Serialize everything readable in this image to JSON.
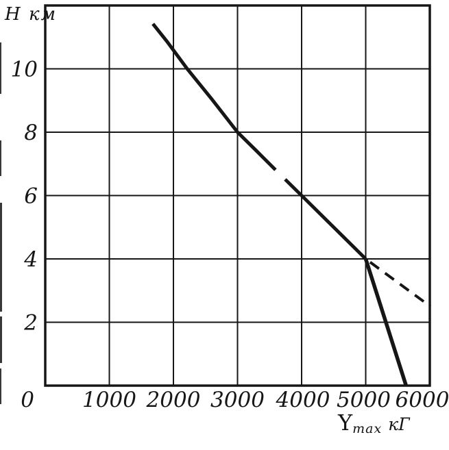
{
  "figure": {
    "background": "#ffffff",
    "ink_color": "#161616",
    "y_axis_title": "Н км",
    "x_axis_title": {
      "main": "Y",
      "sub": "max",
      "unit": "кГ"
    }
  },
  "chart_data": {
    "type": "line",
    "title": "",
    "xlabel": "Ymax кГ",
    "ylabel": "Н км",
    "xlim": [
      0,
      6000
    ],
    "ylim": [
      0,
      12
    ],
    "grid": true,
    "legend": "none",
    "x_ticks": [
      1000,
      2000,
      3000,
      4000,
      5000,
      6000
    ],
    "x_tick_labels": [
      "1000",
      "2000",
      "3000",
      "4000",
      "5000",
      "6000"
    ],
    "x_tick_label_dx": [
      0,
      0,
      0,
      2,
      -3,
      -11
    ],
    "y_ticks": [
      2,
      4,
      6,
      8,
      10
    ],
    "y_tick_labels": [
      "2",
      "4",
      "6",
      "8",
      "10"
    ],
    "origin_label": "0",
    "series": [
      {
        "name": "ceiling-curve-upper-solid",
        "style": "solid",
        "width": 5,
        "points": [
          [
            1680,
            11.42
          ],
          [
            1900,
            10.86
          ],
          [
            2215,
            10
          ],
          [
            2600,
            9.04
          ],
          [
            3000,
            8
          ],
          [
            3300,
            7.4
          ],
          [
            3593,
            6.81
          ]
        ]
      },
      {
        "name": "ceiling-curve-lower-solid",
        "style": "solid",
        "width": 5,
        "points": [
          [
            3743,
            6.51
          ],
          [
            4000,
            6
          ],
          [
            5000,
            4
          ]
        ]
      },
      {
        "name": "steep-descent-branch-solid",
        "style": "solid",
        "width": 5.5,
        "points": [
          [
            5000,
            4
          ],
          [
            5630,
            0
          ]
        ]
      },
      {
        "name": "extrapolation-branch-dashed",
        "style": "dashed",
        "width": 4,
        "points": [
          [
            5000,
            4
          ],
          [
            6010,
            2.5
          ]
        ]
      }
    ]
  }
}
